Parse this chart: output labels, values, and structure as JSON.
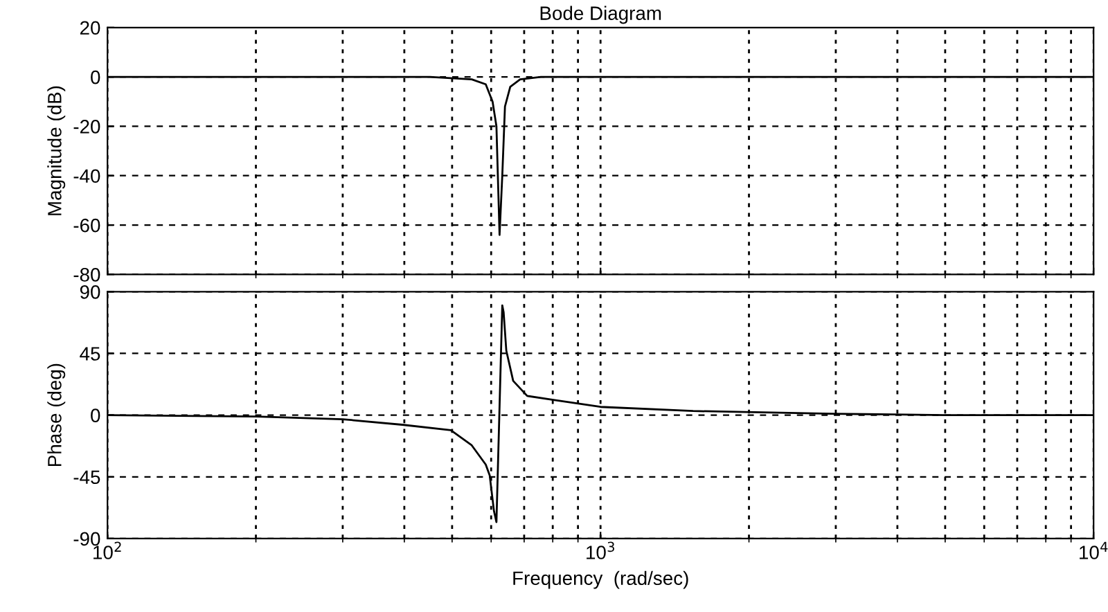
{
  "chart_data": [
    {
      "type": "line",
      "title": "Bode Diagram",
      "ylabel": "Magnitude (dB)",
      "log": "x",
      "grid": true,
      "tick_labels": "y",
      "xlim": [
        100,
        10000
      ],
      "ylim": [
        -80,
        20
      ],
      "yticks": [
        -80,
        -60,
        -40,
        -20,
        0,
        20
      ],
      "series": [
        {
          "color": "#000000",
          "x": [
            100,
            451,
            548,
            585,
            604,
            615,
            624,
            632,
            640,
            656,
            687,
            757,
            1000,
            10000
          ],
          "values": [
            0,
            0,
            -1,
            -3,
            -10,
            -20,
            -64,
            -40,
            -12,
            -4,
            -1,
            0,
            0,
            0
          ]
        }
      ]
    },
    {
      "type": "line",
      "xlabel": "Frequency  (rad/sec)",
      "ylabel": "Phase (deg)",
      "log": "x",
      "grid": true,
      "xlim": [
        100,
        10000
      ],
      "xticks": [
        {
          "value": 100,
          "label": "10$^{2}$"
        },
        {
          "value": 1000,
          "label": "10$^{3}$"
        },
        {
          "value": 10000,
          "label": "10$^{4}$"
        }
      ],
      "ylim": [
        -90,
        90
      ],
      "yticks": [
        -90,
        -45,
        0,
        45,
        90
      ],
      "series": [
        {
          "color": "#000000",
          "x": [
            100,
            200,
            300,
            396,
            497,
            548,
            585,
            596,
            608,
            615,
            632,
            636,
            644,
            665,
            710,
            807,
            1000,
            1541,
            2944,
            5000,
            10000
          ],
          "values": [
            0,
            -1,
            -3,
            -7,
            -11,
            -22,
            -36,
            -44,
            -70,
            -78,
            80,
            75,
            47,
            25,
            14,
            11,
            6,
            3,
            1,
            0,
            0
          ]
        }
      ]
    }
  ]
}
